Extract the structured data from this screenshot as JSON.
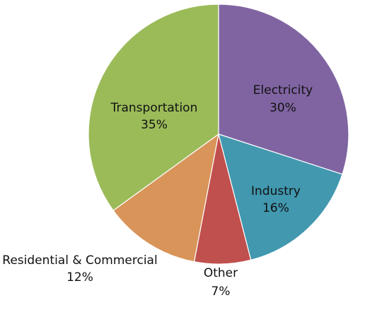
{
  "chart_data": {
    "type": "pie",
    "title": "",
    "start_angle_deg": 0,
    "direction": "clockwise",
    "legend": "none",
    "slices": [
      {
        "label": "Electricity",
        "value": 30,
        "value_label": "30%",
        "color": "#8064A2"
      },
      {
        "label": "Industry",
        "value": 16,
        "value_label": "16%",
        "color": "#4198AF"
      },
      {
        "label": "Other",
        "value": 7,
        "value_label": "7%",
        "color": "#C0504D"
      },
      {
        "label": "Residential & Commercial",
        "value": 12,
        "value_label": "12%",
        "color": "#D99459"
      },
      {
        "label": "Transportation",
        "value": 35,
        "value_label": "35%",
        "color": "#9BBB59"
      }
    ]
  }
}
